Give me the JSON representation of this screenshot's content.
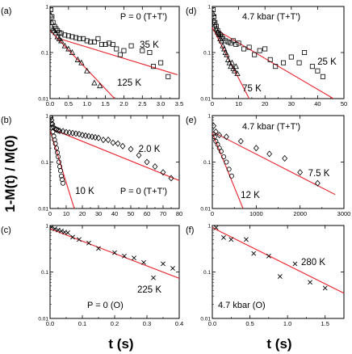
{
  "figure": {
    "ylabel": "1-M(t) / M(0)",
    "xlabel_left": "t (s)",
    "xlabel_right": "t (s)"
  },
  "chart_data": [
    {
      "id": "a",
      "panel_label": "(a)",
      "condition": "P = 0 (T+T')",
      "type": "scatter",
      "y_scale": "log",
      "ylim": [
        0.01,
        1
      ],
      "xlim": [
        0,
        3.5
      ],
      "xticks": [
        0,
        0.5,
        1.0,
        1.5,
        2.0,
        2.5,
        3.0,
        3.5
      ],
      "xtick_labels": [
        "0.0",
        "0.5",
        "1.0",
        "1.5",
        "2.0",
        "2.5",
        "3.0",
        "3.5"
      ],
      "yticks": [
        0.01,
        0.1,
        1
      ],
      "ytick_labels": [
        "0.01",
        "0.1",
        "1"
      ],
      "series": [
        {
          "name": "35 K",
          "marker": "square",
          "x": [
            0.02,
            0.05,
            0.08,
            0.12,
            0.16,
            0.2,
            0.25,
            0.3,
            0.4,
            0.5,
            0.6,
            0.7,
            0.8,
            0.9,
            1.0,
            1.1,
            1.2,
            1.3,
            1.4,
            1.5,
            1.6,
            1.7,
            1.8,
            1.9,
            2.0,
            2.2,
            2.5,
            2.7,
            2.8,
            3.0,
            3.2
          ],
          "y": [
            0.85,
            0.6,
            0.45,
            0.37,
            0.33,
            0.3,
            0.27,
            0.26,
            0.24,
            0.23,
            0.22,
            0.21,
            0.2,
            0.2,
            0.18,
            0.17,
            0.17,
            0.2,
            0.15,
            0.15,
            0.16,
            0.15,
            0.12,
            0.09,
            0.11,
            0.14,
            0.11,
            0.1,
            0.05,
            0.06,
            0.03
          ],
          "fit": {
            "x": [
              0.25,
              3.45
            ],
            "y": [
              0.2,
              0.033
            ]
          }
        },
        {
          "name": "125 K",
          "marker": "triangle",
          "x": [
            0.02,
            0.05,
            0.08,
            0.1,
            0.15,
            0.2,
            0.25,
            0.3,
            0.4,
            0.5,
            0.6,
            0.75,
            0.85,
            1.0,
            1.2,
            1.35
          ],
          "y": [
            0.65,
            0.45,
            0.33,
            0.3,
            0.27,
            0.22,
            0.2,
            0.18,
            0.14,
            0.12,
            0.1,
            0.07,
            0.06,
            0.04,
            0.022,
            0.019
          ],
          "fit": {
            "x": [
              0.0,
              1.75
            ],
            "y": [
              0.3,
              0.01
            ]
          }
        }
      ]
    },
    {
      "id": "b",
      "panel_label": "(b)",
      "condition": "P = 0 (T+T')",
      "type": "scatter",
      "y_scale": "log",
      "ylim": [
        0.01,
        1
      ],
      "xlim": [
        0,
        80
      ],
      "xticks": [
        0,
        10,
        20,
        30,
        40,
        50,
        60,
        70,
        80
      ],
      "xtick_labels": [
        "0",
        "10",
        "20",
        "30",
        "40",
        "50",
        "60",
        "70",
        "80"
      ],
      "yticks": [
        0.01,
        0.1,
        1
      ],
      "ytick_labels": [
        "0.01",
        "0.1",
        "1"
      ],
      "series": [
        {
          "name": "2.0 K",
          "marker": "diamond",
          "x": [
            0.5,
            1,
            1.5,
            2,
            3,
            4,
            5,
            6,
            8,
            10,
            12,
            14,
            16,
            18,
            20,
            22,
            24,
            26,
            28,
            30,
            33,
            36,
            39,
            42,
            45,
            50,
            55,
            60,
            65,
            70,
            75
          ],
          "y": [
            0.92,
            0.8,
            0.66,
            0.57,
            0.52,
            0.5,
            0.48,
            0.47,
            0.46,
            0.44,
            0.43,
            0.42,
            0.41,
            0.4,
            0.38,
            0.37,
            0.36,
            0.35,
            0.34,
            0.33,
            0.3,
            0.3,
            0.26,
            0.25,
            0.22,
            0.19,
            0.14,
            0.1,
            0.08,
            0.06,
            0.045
          ],
          "fit": {
            "x": [
              2,
              80
            ],
            "y": [
              0.5,
              0.04
            ]
          }
        },
        {
          "name": "10 K",
          "marker": "circle",
          "x": [
            0.3,
            0.8,
            1.3,
            1.8,
            2.3,
            2.8,
            3.3,
            4,
            4.5,
            5,
            5.5,
            6,
            6.5,
            7,
            7.5,
            8
          ],
          "y": [
            0.9,
            0.68,
            0.55,
            0.45,
            0.36,
            0.3,
            0.25,
            0.2,
            0.16,
            0.13,
            0.1,
            0.08,
            0.065,
            0.05,
            0.042,
            0.035
          ],
          "fit": {
            "x": [
              0,
              15
            ],
            "y": [
              0.48,
              0.01
            ]
          }
        }
      ]
    },
    {
      "id": "c",
      "panel_label": "(c)",
      "condition": "P = 0 (O)",
      "type": "scatter",
      "y_scale": "log",
      "ylim": [
        0.01,
        1
      ],
      "xlim": [
        0,
        0.4
      ],
      "xticks": [
        0,
        0.1,
        0.2,
        0.3,
        0.4
      ],
      "xtick_labels": [
        "0.0",
        "0.1",
        "0.2",
        "0.3",
        "0.4"
      ],
      "yticks": [
        0.01,
        0.1,
        1
      ],
      "ytick_labels": [
        "0.01",
        "0.1",
        "1"
      ],
      "series": [
        {
          "name": "225 K",
          "marker": "x",
          "x": [
            0.005,
            0.015,
            0.025,
            0.035,
            0.045,
            0.055,
            0.07,
            0.09,
            0.12,
            0.15,
            0.2,
            0.23,
            0.26,
            0.29,
            0.32,
            0.35,
            0.38
          ],
          "y": [
            0.92,
            0.85,
            0.8,
            0.76,
            0.72,
            0.7,
            0.56,
            0.5,
            0.42,
            0.32,
            0.26,
            0.22,
            0.2,
            0.16,
            0.075,
            0.15,
            0.12
          ],
          "fit": {
            "x": [
              0.0,
              0.4
            ],
            "y": [
              0.85,
              0.073
            ]
          }
        }
      ]
    },
    {
      "id": "d",
      "panel_label": "(d)",
      "condition": "4.7 kbar (T+T')",
      "type": "scatter",
      "y_scale": "log",
      "ylim": [
        0.01,
        1
      ],
      "xlim": [
        0,
        50
      ],
      "xticks": [
        0,
        10,
        20,
        30,
        40,
        50
      ],
      "xtick_labels": [
        "0",
        "10",
        "20",
        "30",
        "40",
        "50"
      ],
      "yticks": [
        0.01,
        0.1,
        1
      ],
      "ytick_labels": [
        "0.01",
        "0.1",
        "1"
      ],
      "series": [
        {
          "name": "25 K",
          "marker": "square",
          "x": [
            0.3,
            0.6,
            1,
            1.5,
            2,
            2.5,
            3,
            3.5,
            4,
            5,
            6,
            7,
            8,
            9,
            10,
            12,
            14,
            16,
            18,
            20,
            22,
            24,
            27,
            30,
            33,
            35,
            38,
            40,
            42
          ],
          "y": [
            0.85,
            0.6,
            0.45,
            0.37,
            0.3,
            0.26,
            0.24,
            0.22,
            0.2,
            0.18,
            0.17,
            0.16,
            0.18,
            0.15,
            0.16,
            0.12,
            0.13,
            0.09,
            0.11,
            0.12,
            0.07,
            0.05,
            0.06,
            0.08,
            0.06,
            0.1,
            0.05,
            0.04,
            0.03
          ],
          "fit": {
            "x": [
              2,
              46
            ],
            "y": [
              0.3,
              0.01
            ]
          }
        },
        {
          "name": "75 K",
          "marker": "triangle",
          "x": [
            0.3,
            0.6,
            1,
            1.5,
            2,
            2.5,
            3,
            3.5,
            4,
            4.5,
            5,
            5.5,
            6,
            6.5,
            7,
            7.5,
            8,
            8.5,
            9,
            9.5
          ],
          "y": [
            0.7,
            0.5,
            0.4,
            0.33,
            0.28,
            0.25,
            0.2,
            0.18,
            0.14,
            0.12,
            0.1,
            0.09,
            0.07,
            0.06,
            0.05,
            0.06,
            0.045,
            0.04,
            0.05,
            0.035
          ],
          "fit": {
            "x": [
              0,
              14
            ],
            "y": [
              0.35,
              0.01
            ]
          }
        }
      ]
    },
    {
      "id": "e",
      "panel_label": "(e)",
      "condition": "4.7 kbar (T+T')",
      "type": "scatter",
      "y_scale": "log",
      "ylim": [
        0.01,
        1
      ],
      "xlim": [
        0,
        3000
      ],
      "xticks": [
        0,
        1000,
        2000,
        3000
      ],
      "xtick_labels": [
        "0",
        "1000",
        "2000",
        "3000"
      ],
      "yticks": [
        0.01,
        0.1,
        1
      ],
      "ytick_labels": [
        "0.01",
        "0.1",
        "1"
      ],
      "series": [
        {
          "name": "7.5 K",
          "marker": "diamond",
          "x": [
            30,
            80,
            160,
            320,
            650,
            1000,
            1300,
            1650,
            2000,
            2400
          ],
          "y": [
            0.6,
            0.45,
            0.38,
            0.35,
            0.28,
            0.2,
            0.15,
            0.12,
            0.06,
            0.035
          ],
          "fit": {
            "x": [
              0,
              2800
            ],
            "y": [
              0.45,
              0.02
            ]
          }
        },
        {
          "name": "12 K",
          "marker": "circle",
          "x": [
            20,
            50,
            80,
            120,
            160,
            200,
            260,
            320,
            380,
            440
          ],
          "y": [
            0.4,
            0.35,
            0.28,
            0.24,
            0.2,
            0.17,
            0.13,
            0.1,
            0.07,
            0.05
          ],
          "fit": {
            "x": [
              0,
              700
            ],
            "y": [
              0.42,
              0.01
            ]
          }
        }
      ]
    },
    {
      "id": "f",
      "panel_label": "(f)",
      "condition": "4.7 kbar (O)",
      "type": "scatter",
      "y_scale": "log",
      "ylim": [
        0.01,
        1
      ],
      "xlim": [
        0,
        1.75
      ],
      "xticks": [
        0,
        0.5,
        1.0,
        1.5
      ],
      "xtick_labels": [
        "0.0",
        "0.5",
        "1.0",
        "1.5"
      ],
      "yticks": [
        0.01,
        0.1,
        1
      ],
      "ytick_labels": [
        "0.01",
        "0.1",
        "1"
      ],
      "series": [
        {
          "name": "280 K",
          "marker": "x",
          "x": [
            0.05,
            0.15,
            0.25,
            0.45,
            0.55,
            0.75,
            0.9,
            1.1,
            1.3,
            1.5
          ],
          "y": [
            0.9,
            0.55,
            0.5,
            0.5,
            0.25,
            0.22,
            0.08,
            0.15,
            0.06,
            0.045
          ],
          "fit": {
            "x": [
              0.0,
              1.75
            ],
            "y": [
              0.9,
              0.035
            ]
          }
        }
      ]
    }
  ]
}
